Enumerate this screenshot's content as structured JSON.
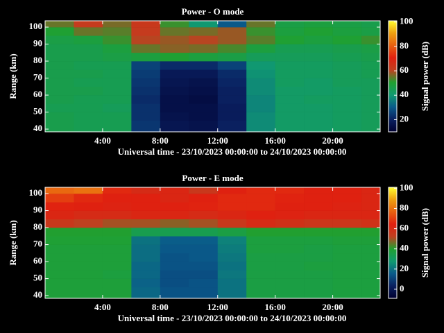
{
  "chart_data": [
    {
      "type": "heatmap",
      "title": "Power - O mode",
      "xlabel": "Universal time - 23/10/2023 00:00:00 to 24/10/2023 00:00:00",
      "ylabel": "Range (km)",
      "xlim": [
        0,
        23.3
      ],
      "xticks": [
        {
          "value": 4,
          "label": "4:00"
        },
        {
          "value": 8,
          "label": "8:00"
        },
        {
          "value": 12,
          "label": "12:00"
        },
        {
          "value": 16,
          "label": "16:00"
        },
        {
          "value": 20,
          "label": "20:00"
        }
      ],
      "ylim": [
        38.4,
        103.7
      ],
      "yticks": [
        40,
        50,
        60,
        70,
        80,
        90,
        100
      ],
      "x": [
        0,
        2,
        4,
        6,
        8,
        10,
        12,
        14,
        16,
        18,
        20,
        22,
        23.3
      ],
      "y": [
        38.4,
        45,
        50,
        55,
        60,
        65,
        70,
        75,
        80,
        85,
        90,
        95,
        100,
        103.7
      ],
      "values": [
        [
          46,
          45,
          45,
          24,
          17,
          16,
          20,
          38,
          42,
          42,
          43,
          44
        ],
        [
          46,
          45,
          45,
          23,
          16,
          15,
          19,
          38,
          42,
          42,
          43,
          44
        ],
        [
          45,
          45,
          44,
          23,
          15,
          15,
          19,
          37,
          42,
          42,
          43,
          44
        ],
        [
          46,
          45,
          45,
          22,
          15,
          14,
          20,
          37,
          42,
          43,
          43,
          44
        ],
        [
          46,
          46,
          45,
          23,
          16,
          15,
          20,
          38,
          42,
          42,
          43,
          44
        ],
        [
          46,
          45,
          45,
          24,
          17,
          16,
          21,
          38,
          43,
          42,
          44,
          44
        ],
        [
          46,
          46,
          45,
          25,
          18,
          18,
          22,
          39,
          43,
          43,
          44,
          45
        ],
        [
          46,
          45,
          45,
          26,
          22,
          22,
          26,
          40,
          43,
          43,
          44,
          45
        ],
        [
          46,
          46,
          47,
          48,
          50,
          48,
          47,
          44,
          44,
          44,
          45,
          46
        ],
        [
          46,
          46,
          48,
          55,
          57,
          56,
          53,
          48,
          45,
          45,
          46,
          47
        ],
        [
          47,
          48,
          52,
          60,
          58,
          60,
          58,
          54,
          50,
          48,
          50,
          52
        ],
        [
          50,
          55,
          54,
          62,
          55,
          56,
          58,
          52,
          48,
          50,
          48,
          47
        ],
        [
          55,
          62,
          56,
          63,
          52,
          40,
          30,
          55,
          47,
          48,
          47,
          46
        ]
      ],
      "colormap": [
        "#000030",
        "#0a2060",
        "#0a5a8a",
        "#109a70",
        "#20a030",
        "#c04020",
        "#e02010",
        "#e86010",
        "#f0a010",
        "#ffff30"
      ],
      "colorbar": {
        "label": "Signal power (dB)",
        "lim": [
          10,
          101
        ],
        "ticks": [
          20,
          40,
          60,
          80,
          100
        ]
      }
    },
    {
      "type": "heatmap",
      "title": "Power - E mode",
      "xlabel": "Universal time - 23/10/2023 00:00:00 to 24/10/2023 00:00:00",
      "ylabel": "Range (km)",
      "xlim": [
        0,
        23.3
      ],
      "xticks": [
        {
          "value": 4,
          "label": "4:00"
        },
        {
          "value": 8,
          "label": "8:00"
        },
        {
          "value": 12,
          "label": "12:00"
        },
        {
          "value": 16,
          "label": "16:00"
        },
        {
          "value": 20,
          "label": "20:00"
        }
      ],
      "ylim": [
        38.4,
        103.7
      ],
      "yticks": [
        40,
        50,
        60,
        70,
        80,
        90,
        100
      ],
      "x": [
        0,
        2,
        4,
        6,
        8,
        10,
        12,
        14,
        16,
        18,
        20,
        22,
        23.3
      ],
      "y": [
        38.4,
        45,
        50,
        55,
        60,
        65,
        70,
        75,
        80,
        85,
        90,
        95,
        100,
        103.7
      ],
      "values": [
        [
          38,
          38,
          38,
          18,
          14,
          14,
          20,
          36,
          36,
          36,
          37,
          37
        ],
        [
          38,
          38,
          38,
          17,
          13,
          14,
          20,
          36,
          36,
          36,
          37,
          37
        ],
        [
          38,
          38,
          37,
          18,
          13,
          13,
          21,
          36,
          36,
          36,
          37,
          37
        ],
        [
          38,
          38,
          38,
          18,
          14,
          14,
          20,
          36,
          36,
          37,
          37,
          37
        ],
        [
          38,
          38,
          38,
          19,
          14,
          15,
          21,
          36,
          36,
          36,
          37,
          37
        ],
        [
          38,
          38,
          38,
          19,
          15,
          15,
          22,
          37,
          37,
          36,
          37,
          37
        ],
        [
          39,
          39,
          39,
          20,
          16,
          16,
          23,
          37,
          37,
          37,
          38,
          38
        ],
        [
          40,
          40,
          40,
          34,
          34,
          34,
          36,
          40,
          40,
          40,
          40,
          40
        ],
        [
          55,
          52,
          50,
          50,
          48,
          50,
          55,
          60,
          58,
          56,
          56,
          58
        ],
        [
          62,
          60,
          60,
          62,
          62,
          60,
          62,
          64,
          63,
          62,
          62,
          62
        ],
        [
          65,
          64,
          63,
          64,
          64,
          65,
          66,
          66,
          64,
          64,
          63,
          62
        ],
        [
          70,
          66,
          64,
          64,
          62,
          64,
          66,
          66,
          65,
          64,
          64,
          62
        ],
        [
          78,
          80,
          66,
          60,
          62,
          55,
          64,
          66,
          66,
          64,
          64,
          62
        ]
      ],
      "colormap": [
        "#000030",
        "#0a2060",
        "#0a5a8a",
        "#109a70",
        "#20a030",
        "#c04020",
        "#e02010",
        "#e86010",
        "#f0a010",
        "#ffff30"
      ],
      "colorbar": {
        "label": "Signal power (dB)",
        "lim": [
          -9,
          101
        ],
        "ticks": [
          0,
          20,
          40,
          60,
          80,
          100
        ]
      }
    }
  ]
}
